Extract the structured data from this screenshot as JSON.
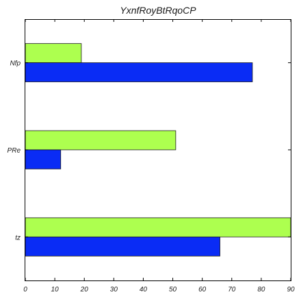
{
  "chart_data": {
    "type": "bar",
    "orientation": "horizontal",
    "title": "YxnfRoyBtRqoCP",
    "xlabel": "",
    "ylabel": "",
    "categories": [
      "Nfp",
      "PRe",
      "tz"
    ],
    "series": [
      {
        "color": "#0a2cf5",
        "values": [
          77,
          12,
          66
        ]
      },
      {
        "color": "#adff4f",
        "values": [
          19,
          51,
          90
        ]
      }
    ],
    "xlim": [
      0,
      90
    ],
    "xticks": [
      0,
      10,
      20,
      30,
      40,
      50,
      60,
      70,
      80,
      90
    ],
    "grid": false,
    "legend": "none"
  }
}
